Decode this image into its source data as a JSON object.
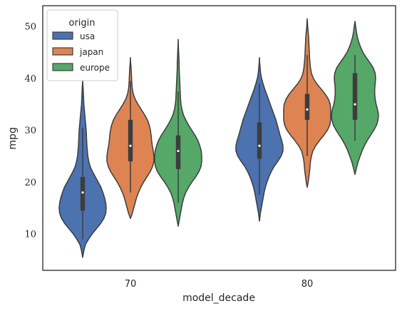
{
  "chart_data": {
    "type": "violin",
    "xlabel": "model_decade",
    "ylabel": "mpg",
    "categories": [
      "70",
      "80"
    ],
    "ylim": [
      3,
      54
    ],
    "yticks": [
      10,
      20,
      30,
      40,
      50
    ],
    "grid": false,
    "legend": {
      "title": "origin",
      "placement": "top-left",
      "entries": [
        "usa",
        "japan",
        "europe"
      ]
    },
    "colors": {
      "usa": "#4c72b0",
      "japan": "#dd8452",
      "europe": "#55a868",
      "outline": "#3d3d3d"
    },
    "series": [
      {
        "name": "usa",
        "violins": [
          {
            "category": "70",
            "min": 9,
            "q1": 14.5,
            "median": 18,
            "q3": 21,
            "max": 30.5,
            "kde_min": 5.5,
            "kde_max": 39.5,
            "profile": [
              [
                5.5,
                0
              ],
              [
                7,
                0.06
              ],
              [
                8,
                0.12
              ],
              [
                9,
                0.25
              ],
              [
                10,
                0.4
              ],
              [
                11,
                0.58
              ],
              [
                12,
                0.76
              ],
              [
                13,
                0.9
              ],
              [
                14,
                0.98
              ],
              [
                15,
                1.0
              ],
              [
                16,
                0.98
              ],
              [
                17,
                0.93
              ],
              [
                18,
                0.86
              ],
              [
                19,
                0.78
              ],
              [
                20,
                0.66
              ],
              [
                21,
                0.54
              ],
              [
                22,
                0.42
              ],
              [
                23,
                0.32
              ],
              [
                24,
                0.26
              ],
              [
                25,
                0.22
              ],
              [
                26,
                0.2
              ],
              [
                27,
                0.18
              ],
              [
                28,
                0.17
              ],
              [
                29,
                0.16
              ],
              [
                30,
                0.15
              ],
              [
                31,
                0.13
              ],
              [
                32,
                0.11
              ],
              [
                33,
                0.09
              ],
              [
                34,
                0.07
              ],
              [
                35,
                0.05
              ],
              [
                36,
                0.04
              ],
              [
                37,
                0.03
              ],
              [
                38,
                0.02
              ],
              [
                39.5,
                0
              ]
            ]
          },
          {
            "category": "80",
            "min": 17.5,
            "q1": 24.5,
            "median": 27,
            "q3": 31.5,
            "max": 39,
            "kde_min": 12.5,
            "kde_max": 44,
            "profile": [
              [
                12.5,
                0
              ],
              [
                14,
                0.04
              ],
              [
                15,
                0.08
              ],
              [
                16,
                0.12
              ],
              [
                17,
                0.16
              ],
              [
                18,
                0.2
              ],
              [
                19,
                0.25
              ],
              [
                20,
                0.32
              ],
              [
                21,
                0.4
              ],
              [
                22,
                0.5
              ],
              [
                23,
                0.62
              ],
              [
                24,
                0.78
              ],
              [
                25,
                0.92
              ],
              [
                26,
                1.0
              ],
              [
                27,
                1.0
              ],
              [
                28,
                0.95
              ],
              [
                29,
                0.88
              ],
              [
                30,
                0.82
              ],
              [
                31,
                0.76
              ],
              [
                32,
                0.7
              ],
              [
                33,
                0.62
              ],
              [
                34,
                0.54
              ],
              [
                35,
                0.46
              ],
              [
                36,
                0.38
              ],
              [
                37,
                0.3
              ],
              [
                38,
                0.22
              ],
              [
                39,
                0.15
              ],
              [
                40,
                0.09
              ],
              [
                41,
                0.05
              ],
              [
                42,
                0.03
              ],
              [
                43,
                0.01
              ],
              [
                44,
                0
              ]
            ]
          }
        ]
      },
      {
        "name": "japan",
        "violins": [
          {
            "category": "70",
            "min": 18,
            "q1": 24,
            "median": 27,
            "q3": 32,
            "max": 39.5,
            "kde_min": 13,
            "kde_max": 44,
            "profile": [
              [
                13,
                0
              ],
              [
                14,
                0.08
              ],
              [
                15,
                0.14
              ],
              [
                16,
                0.2
              ],
              [
                17,
                0.26
              ],
              [
                18,
                0.34
              ],
              [
                19,
                0.44
              ],
              [
                20,
                0.56
              ],
              [
                21,
                0.7
              ],
              [
                22,
                0.84
              ],
              [
                23,
                0.94
              ],
              [
                24,
                1.0
              ],
              [
                25,
                1.0
              ],
              [
                26,
                0.97
              ],
              [
                27,
                0.93
              ],
              [
                28,
                0.9
              ],
              [
                29,
                0.88
              ],
              [
                30,
                0.85
              ],
              [
                31,
                0.8
              ],
              [
                32,
                0.72
              ],
              [
                33,
                0.6
              ],
              [
                34,
                0.46
              ],
              [
                35,
                0.32
              ],
              [
                36,
                0.2
              ],
              [
                37,
                0.12
              ],
              [
                38,
                0.08
              ],
              [
                39,
                0.06
              ],
              [
                40,
                0.05
              ],
              [
                41,
                0.04
              ],
              [
                42,
                0.03
              ],
              [
                43,
                0.01
              ],
              [
                44,
                0
              ]
            ]
          },
          {
            "category": "80",
            "min": 25,
            "q1": 32,
            "median": 34,
            "q3": 37,
            "max": 44.5,
            "kde_min": 19,
            "kde_max": 51.5,
            "profile": [
              [
                19,
                0
              ],
              [
                20,
                0.04
              ],
              [
                21,
                0.07
              ],
              [
                22,
                0.1
              ],
              [
                23,
                0.12
              ],
              [
                24,
                0.14
              ],
              [
                25,
                0.18
              ],
              [
                26,
                0.24
              ],
              [
                27,
                0.36
              ],
              [
                28,
                0.52
              ],
              [
                29,
                0.7
              ],
              [
                30,
                0.86
              ],
              [
                31,
                0.96
              ],
              [
                32,
                1.0
              ],
              [
                33,
                1.0
              ],
              [
                34,
                1.0
              ],
              [
                35,
                0.98
              ],
              [
                36,
                0.9
              ],
              [
                37,
                0.76
              ],
              [
                38,
                0.58
              ],
              [
                39,
                0.4
              ],
              [
                40,
                0.26
              ],
              [
                41,
                0.18
              ],
              [
                42,
                0.14
              ],
              [
                43,
                0.12
              ],
              [
                44,
                0.1
              ],
              [
                45,
                0.09
              ],
              [
                46,
                0.08
              ],
              [
                47,
                0.07
              ],
              [
                48,
                0.06
              ],
              [
                49,
                0.04
              ],
              [
                50,
                0.02
              ],
              [
                51.5,
                0
              ]
            ]
          }
        ]
      },
      {
        "name": "europe",
        "violins": [
          {
            "category": "70",
            "min": 16,
            "q1": 22.5,
            "median": 26,
            "q3": 29,
            "max": 37.5,
            "kde_min": 11.5,
            "kde_max": 47.5,
            "profile": [
              [
                11.5,
                0
              ],
              [
                13,
                0.06
              ],
              [
                14,
                0.1
              ],
              [
                15,
                0.14
              ],
              [
                16,
                0.18
              ],
              [
                17,
                0.24
              ],
              [
                18,
                0.32
              ],
              [
                19,
                0.44
              ],
              [
                20,
                0.58
              ],
              [
                21,
                0.74
              ],
              [
                22,
                0.88
              ],
              [
                23,
                0.97
              ],
              [
                24,
                1.0
              ],
              [
                25,
                1.0
              ],
              [
                26,
                0.98
              ],
              [
                27,
                0.92
              ],
              [
                28,
                0.84
              ],
              [
                29,
                0.72
              ],
              [
                30,
                0.58
              ],
              [
                31,
                0.44
              ],
              [
                32,
                0.32
              ],
              [
                33,
                0.22
              ],
              [
                34,
                0.16
              ],
              [
                35,
                0.12
              ],
              [
                36,
                0.1
              ],
              [
                37,
                0.09
              ],
              [
                38,
                0.08
              ],
              [
                39,
                0.07
              ],
              [
                40,
                0.06
              ],
              [
                41,
                0.05
              ],
              [
                42,
                0.04
              ],
              [
                43,
                0.04
              ],
              [
                44,
                0.03
              ],
              [
                45,
                0.02
              ],
              [
                46,
                0.01
              ],
              [
                47.5,
                0
              ]
            ]
          },
          {
            "category": "80",
            "min": 28,
            "q1": 32,
            "median": 35,
            "q3": 41,
            "max": 44.5,
            "kde_min": 21.5,
            "kde_max": 51,
            "profile": [
              [
                21.5,
                0
              ],
              [
                23,
                0.08
              ],
              [
                24,
                0.14
              ],
              [
                25,
                0.22
              ],
              [
                26,
                0.3
              ],
              [
                27,
                0.4
              ],
              [
                28,
                0.52
              ],
              [
                29,
                0.66
              ],
              [
                30,
                0.8
              ],
              [
                31,
                0.92
              ],
              [
                32,
                0.98
              ],
              [
                33,
                1.0
              ],
              [
                34,
                0.96
              ],
              [
                35,
                0.9
              ],
              [
                36,
                0.86
              ],
              [
                37,
                0.84
              ],
              [
                38,
                0.84
              ],
              [
                39,
                0.86
              ],
              [
                40,
                0.88
              ],
              [
                41,
                0.86
              ],
              [
                42,
                0.78
              ],
              [
                43,
                0.64
              ],
              [
                44,
                0.48
              ],
              [
                45,
                0.34
              ],
              [
                46,
                0.24
              ],
              [
                47,
                0.16
              ],
              [
                48,
                0.1
              ],
              [
                49,
                0.06
              ],
              [
                50,
                0.03
              ],
              [
                51,
                0
              ]
            ]
          }
        ]
      }
    ]
  }
}
